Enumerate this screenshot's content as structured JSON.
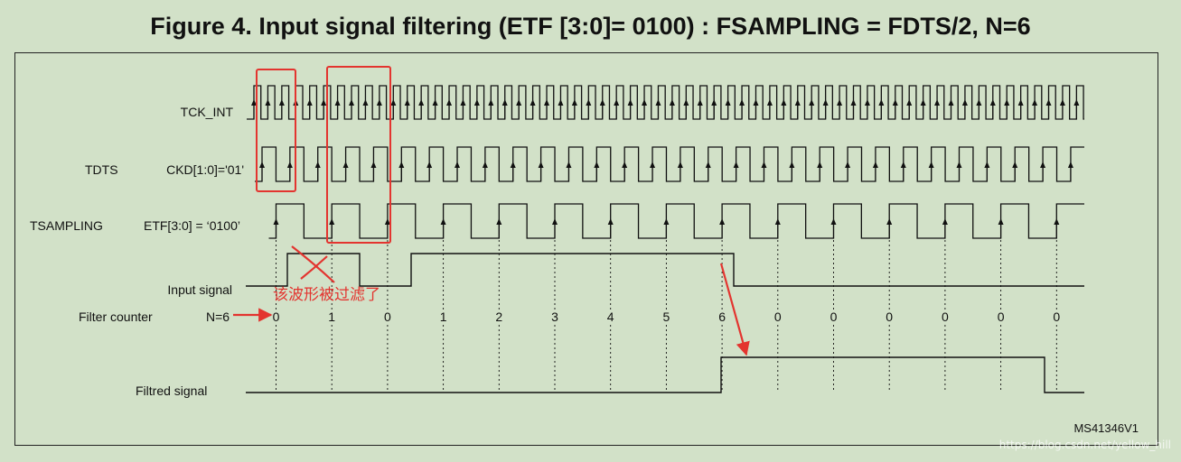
{
  "title": "Figure 4. Input signal filtering (ETF [3:0]= 0100) : FSAMPLING = FDTS/2, N=6",
  "signals": {
    "tck_int": "TCK_INT",
    "tdts": "TDTS",
    "ckd": "CKD[1:0]='01'",
    "tsampling": "TSAMPLING",
    "etf": "ETF[3:0] = ‘0100’",
    "input": "Input signal",
    "filter_counter": "Filter counter",
    "n": "N=6",
    "filtred": "Filtred signal"
  },
  "counter_values": [
    "0",
    "1",
    "0",
    "1",
    "2",
    "3",
    "4",
    "5",
    "6",
    "0",
    "0",
    "0",
    "0",
    "0",
    "0"
  ],
  "annotation": "该波形被过滤了",
  "figure_code": "MS41346V1",
  "watermark": "https://blog.csdn.net/yellow_hill",
  "colors": {
    "background": "#d2e1c8",
    "annotation": "#e3342f",
    "line": "#111111"
  }
}
